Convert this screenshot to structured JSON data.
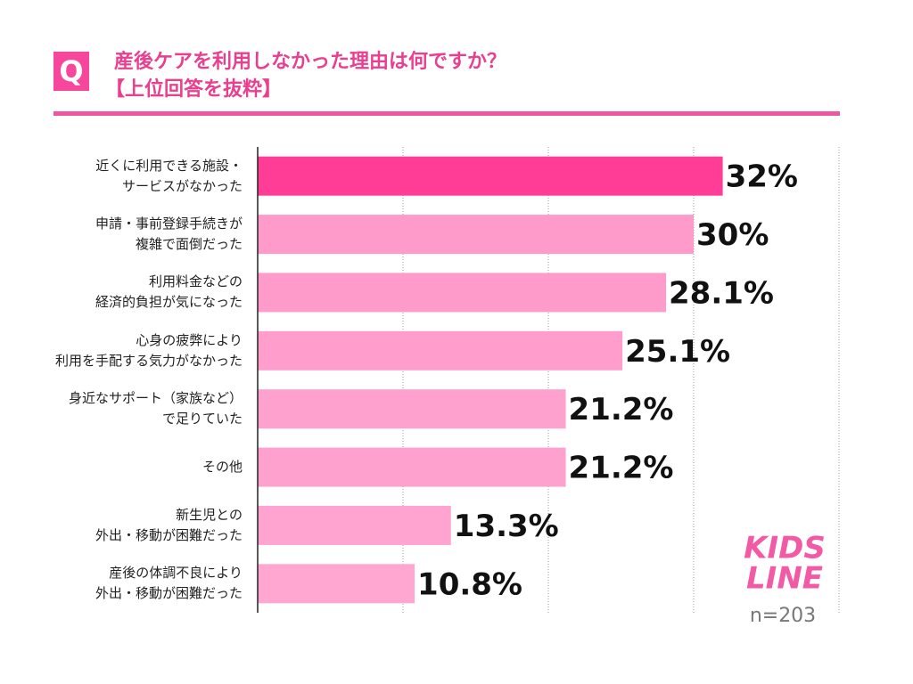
{
  "chart_data": {
    "type": "barh",
    "badge": "Q",
    "title": "産後ケアを利用しなかった理由は何ですか？",
    "subtitle": "【上位回答を抜粋】",
    "categories": [
      "近くに利用できる施設・\nサービスがなかった",
      "申請・事前登録手続きが\n複雑で面倒だった",
      "利用料金などの\n経済的負担が気になった",
      "心身の疲弊により\n利用を手配する気力がなかった",
      "身近なサポート（家族など）\nで足りていた",
      "その他",
      "新生児との\n外出・移動が困難だった",
      "産後の体調不良により\n外出・移動が困難だった"
    ],
    "values": [
      32,
      30,
      28.1,
      25.1,
      21.2,
      21.2,
      13.3,
      10.8
    ],
    "value_labels": [
      "32%",
      "30%",
      "28.1%",
      "25.1%",
      "21.2%",
      "21.2%",
      "13.3%",
      "10.8%"
    ],
    "colors": [
      "#ff3d96",
      "#ff9bcb",
      "#ff9bcb",
      "#ff9ecd",
      "#ffa1ce",
      "#ffa1ce",
      "#ffa4d0",
      "#ffa6d1"
    ],
    "xlim": [
      0,
      40
    ],
    "xticks": [
      0,
      10,
      20,
      30,
      40
    ],
    "grid": true,
    "logo": [
      "KIDS",
      "LINE"
    ],
    "note": "n=203"
  }
}
